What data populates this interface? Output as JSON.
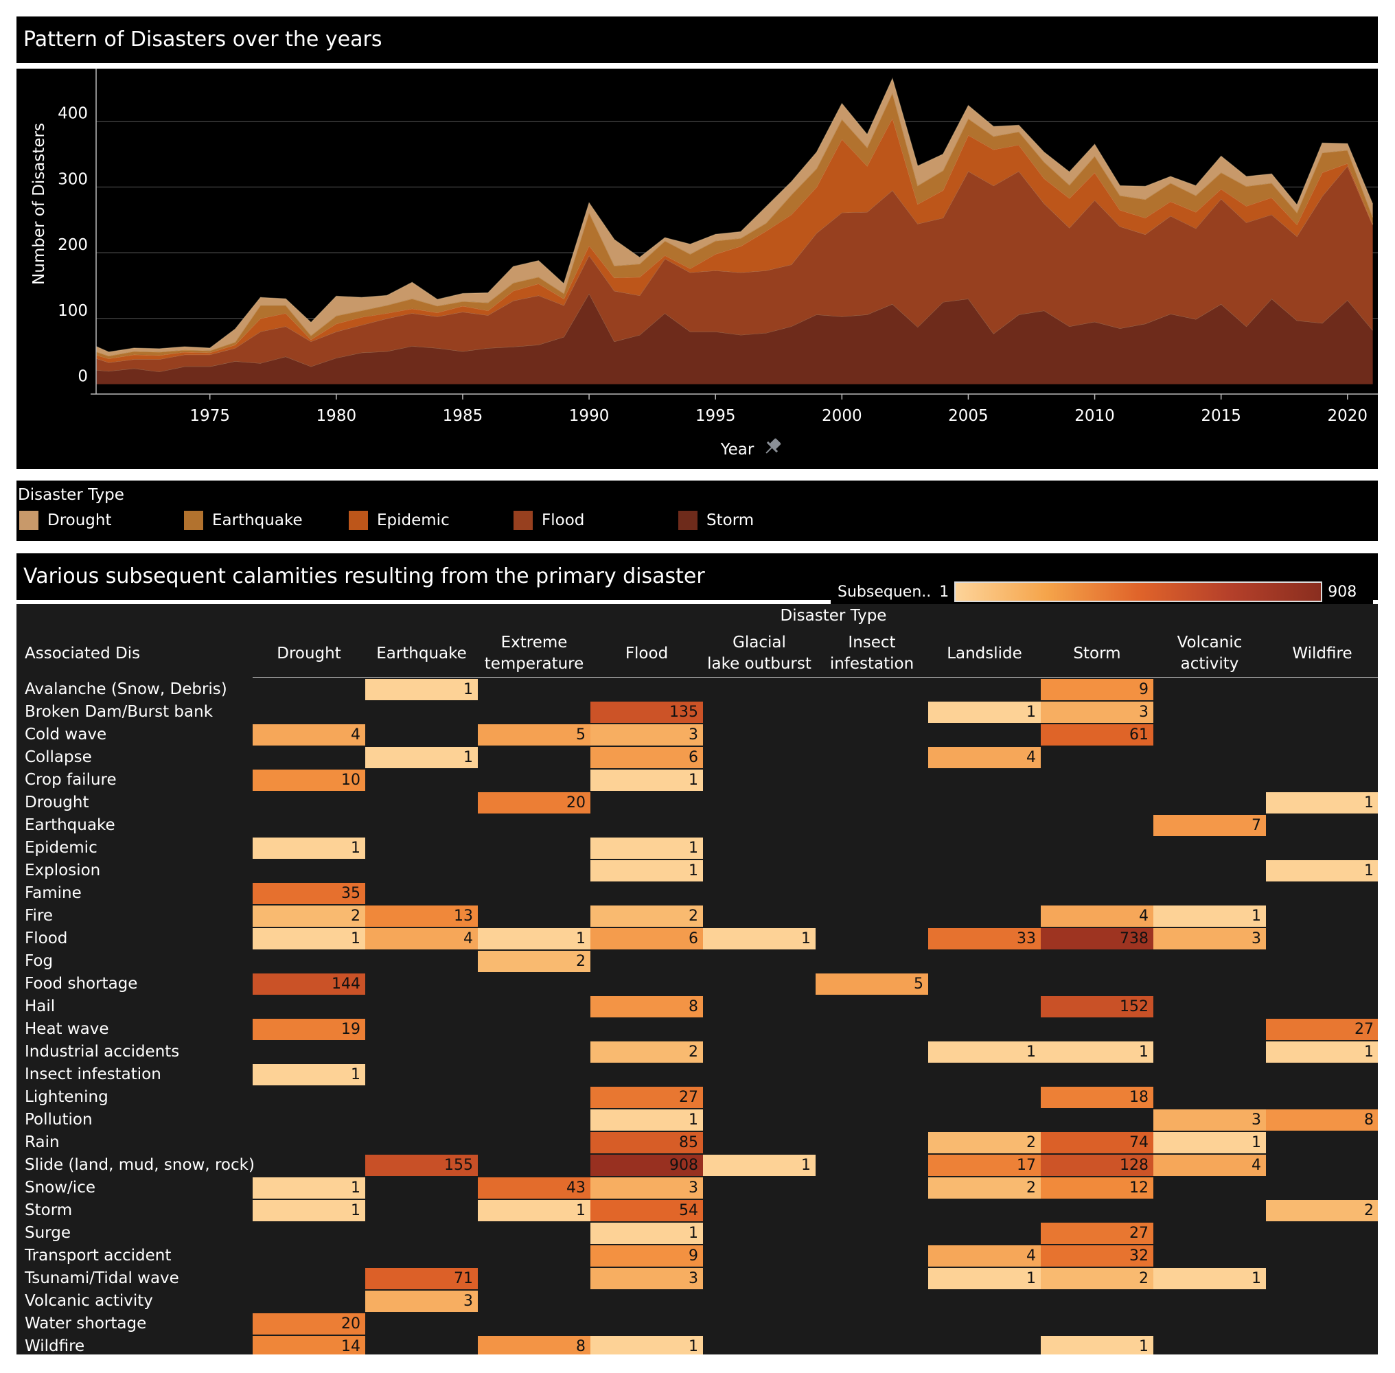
{
  "chart_title": "Pattern of Disasters over the years",
  "heatmap_title": "Various subsequent calamities resulting from the primary disaster",
  "legend": {
    "title": "Disaster Type",
    "items": [
      {
        "label": "Drought",
        "color": "#c8996a"
      },
      {
        "label": "Earthquake",
        "color": "#b2722e"
      },
      {
        "label": "Epidemic",
        "color": "#bd561a"
      },
      {
        "label": "Flood",
        "color": "#97401f"
      },
      {
        "label": "Storm",
        "color": "#6e2b1b"
      }
    ]
  },
  "color_legend": {
    "label": "Subsequen..",
    "min": "1",
    "max": "908"
  },
  "chart_data": [
    {
      "type": "area",
      "stacked": true,
      "title": "Pattern of Disasters over the years",
      "xlabel": "Year",
      "ylabel": "Number of Disasters",
      "x_ticks": [
        "1975",
        "1980",
        "1985",
        "1990",
        "1995",
        "2000",
        "2005",
        "2010",
        "2015",
        "2020"
      ],
      "y_ticks": [
        "0",
        "100",
        "200",
        "300",
        "400"
      ],
      "xlim": [
        1970.5,
        2021.2
      ],
      "ylim": [
        -15,
        480
      ],
      "grid": true,
      "x": [
        1970,
        1971,
        1972,
        1973,
        1974,
        1975,
        1976,
        1977,
        1978,
        1979,
        1980,
        1981,
        1982,
        1983,
        1984,
        1985,
        1986,
        1987,
        1988,
        1989,
        1990,
        1991,
        1992,
        1993,
        1994,
        1995,
        1996,
        1997,
        1998,
        1999,
        2000,
        2001,
        2002,
        2003,
        2004,
        2005,
        2006,
        2007,
        2008,
        2009,
        2010,
        2011,
        2012,
        2013,
        2014,
        2015,
        2016,
        2017,
        2018,
        2019,
        2020,
        2021
      ],
      "series": [
        {
          "name": "Storm",
          "values": [
            23,
            20,
            24,
            19,
            27,
            27,
            35,
            32,
            42,
            27,
            40,
            48,
            50,
            58,
            55,
            50,
            55,
            57,
            60,
            72,
            138,
            65,
            75,
            108,
            80,
            80,
            75,
            78,
            88,
            106,
            103,
            106,
            122,
            87,
            125,
            130,
            77,
            106,
            112,
            88,
            95,
            85,
            92,
            107,
            99,
            122,
            88,
            130,
            97,
            93,
            128,
            82
          ]
        },
        {
          "name": "Flood",
          "values": [
            23,
            13,
            14,
            19,
            18,
            18,
            20,
            48,
            46,
            38,
            40,
            42,
            50,
            50,
            48,
            60,
            50,
            70,
            75,
            48,
            58,
            77,
            60,
            83,
            90,
            93,
            95,
            95,
            94,
            124,
            158,
            156,
            173,
            157,
            128,
            194,
            225,
            218,
            163,
            150,
            185,
            155,
            136,
            149,
            138,
            160,
            158,
            128,
            128,
            193,
            204,
            160
          ]
        },
        {
          "name": "Epidemic",
          "values": [
            4,
            6,
            7,
            6,
            4,
            3,
            5,
            20,
            20,
            3,
            12,
            12,
            8,
            7,
            6,
            9,
            7,
            15,
            18,
            10,
            15,
            20,
            28,
            5,
            6,
            25,
            40,
            60,
            76,
            70,
            112,
            70,
            110,
            30,
            42,
            55,
            55,
            40,
            38,
            45,
            42,
            25,
            25,
            22,
            25,
            15,
            25,
            26,
            18,
            36,
            4,
            2
          ]
        },
        {
          "name": "Earthquake",
          "values": [
            6,
            4,
            5,
            5,
            3,
            3,
            4,
            20,
            12,
            6,
            12,
            10,
            12,
            15,
            10,
            7,
            12,
            12,
            10,
            8,
            50,
            18,
            20,
            22,
            22,
            20,
            12,
            12,
            30,
            28,
            30,
            28,
            38,
            28,
            30,
            25,
            20,
            20,
            25,
            20,
            25,
            22,
            28,
            28,
            25,
            25,
            30,
            22,
            18,
            30,
            20,
            10
          ]
        },
        {
          "name": "Drought",
          "values": [
            10,
            6,
            5,
            5,
            5,
            4,
            20,
            12,
            10,
            20,
            30,
            20,
            15,
            25,
            10,
            12,
            15,
            25,
            25,
            15,
            15,
            40,
            10,
            5,
            15,
            10,
            10,
            25,
            20,
            25,
            24,
            20,
            22,
            30,
            25,
            20,
            15,
            10,
            15,
            20,
            18,
            15,
            20,
            10,
            15,
            25,
            15,
            14,
            12,
            15,
            10,
            20
          ]
        }
      ]
    },
    {
      "type": "heatmap",
      "column_group_label": "Disaster Type",
      "row_header": "Associated Dis",
      "columns": [
        "Drought",
        "Earthquake",
        "Extreme temperature",
        "Flood",
        "Glacial lake outburst",
        "Insect infestation",
        "Landslide",
        "Storm",
        "Volcanic activity",
        "Wildfire"
      ],
      "rows": [
        "Avalanche (Snow, Debris)",
        "Broken Dam/Burst bank",
        "Cold wave",
        "Collapse",
        "Crop failure",
        "Drought",
        "Earthquake",
        "Epidemic",
        "Explosion",
        "Famine",
        "Fire",
        "Flood",
        "Fog",
        "Food shortage",
        "Hail",
        "Heat wave",
        "Industrial accidents",
        "Insect infestation",
        "Lightening",
        "Pollution",
        "Rain",
        "Slide (land, mud, snow, rock)",
        "Snow/ice",
        "Storm",
        "Surge",
        "Transport accident",
        "Tsunami/Tidal wave",
        "Volcanic activity",
        "Water shortage",
        "Wildfire"
      ],
      "values": [
        [
          null,
          1,
          null,
          null,
          null,
          null,
          null,
          9,
          null,
          null
        ],
        [
          null,
          null,
          null,
          135,
          null,
          null,
          1,
          3,
          null,
          null
        ],
        [
          4,
          null,
          5,
          3,
          null,
          null,
          null,
          61,
          null,
          null
        ],
        [
          null,
          1,
          null,
          6,
          null,
          null,
          4,
          null,
          null,
          null
        ],
        [
          10,
          null,
          null,
          1,
          null,
          null,
          null,
          null,
          null,
          null
        ],
        [
          null,
          null,
          20,
          null,
          null,
          null,
          null,
          null,
          null,
          1
        ],
        [
          null,
          null,
          null,
          null,
          null,
          null,
          null,
          null,
          7,
          null
        ],
        [
          1,
          null,
          null,
          1,
          null,
          null,
          null,
          null,
          null,
          null
        ],
        [
          null,
          null,
          null,
          1,
          null,
          null,
          null,
          null,
          null,
          1
        ],
        [
          35,
          null,
          null,
          null,
          null,
          null,
          null,
          null,
          null,
          null
        ],
        [
          2,
          13,
          null,
          2,
          null,
          null,
          null,
          4,
          1,
          null
        ],
        [
          1,
          4,
          1,
          6,
          1,
          null,
          33,
          738,
          3,
          null
        ],
        [
          null,
          null,
          2,
          null,
          null,
          null,
          null,
          null,
          null,
          null
        ],
        [
          144,
          null,
          null,
          null,
          null,
          5,
          null,
          null,
          null,
          null
        ],
        [
          null,
          null,
          null,
          8,
          null,
          null,
          null,
          152,
          null,
          null
        ],
        [
          19,
          null,
          null,
          null,
          null,
          null,
          null,
          null,
          null,
          27
        ],
        [
          null,
          null,
          null,
          2,
          null,
          null,
          1,
          1,
          null,
          1
        ],
        [
          1,
          null,
          null,
          null,
          null,
          null,
          null,
          null,
          null,
          null
        ],
        [
          null,
          null,
          null,
          27,
          null,
          null,
          null,
          18,
          null,
          null
        ],
        [
          null,
          null,
          null,
          1,
          null,
          null,
          null,
          null,
          3,
          8
        ],
        [
          null,
          null,
          null,
          85,
          null,
          null,
          2,
          74,
          1,
          null
        ],
        [
          null,
          155,
          null,
          908,
          1,
          null,
          17,
          128,
          4,
          null
        ],
        [
          1,
          null,
          43,
          3,
          null,
          null,
          2,
          12,
          null,
          null
        ],
        [
          1,
          null,
          1,
          54,
          null,
          null,
          null,
          null,
          null,
          2
        ],
        [
          null,
          null,
          null,
          1,
          null,
          null,
          null,
          27,
          null,
          null
        ],
        [
          null,
          null,
          null,
          9,
          null,
          null,
          4,
          32,
          null,
          null
        ],
        [
          null,
          71,
          null,
          3,
          null,
          null,
          1,
          2,
          1,
          null
        ],
        [
          null,
          3,
          null,
          null,
          null,
          null,
          null,
          null,
          null,
          null
        ],
        [
          20,
          null,
          null,
          null,
          null,
          null,
          null,
          null,
          null,
          null
        ],
        [
          14,
          null,
          8,
          1,
          null,
          null,
          null,
          1,
          null,
          null
        ]
      ],
      "color_range": [
        1,
        908
      ]
    }
  ]
}
